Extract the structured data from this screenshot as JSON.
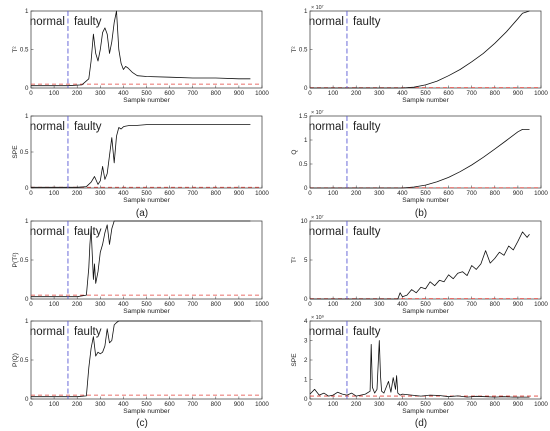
{
  "figure": {
    "annotations": {
      "normal": "normal",
      "faulty": "faulty"
    },
    "xlabel": "Sample number"
  },
  "chart_data": [
    {
      "id": "top-left",
      "type": "line",
      "ylabel": "T²",
      "xlabel": "Sample number",
      "xlim": [
        0,
        1000
      ],
      "ylim": [
        0,
        1
      ],
      "xticks": [
        0,
        100,
        200,
        300,
        400,
        500,
        600,
        700,
        800,
        900,
        1000
      ],
      "yticks": [
        0,
        0.5,
        1
      ],
      "ytick_labels": [
        "0",
        "0.5",
        "1"
      ],
      "multiplier": "",
      "fault_onset": 160,
      "threshold": 0.05,
      "series": [
        {
          "x": [
            0,
            100,
            160,
            220,
            250,
            260,
            270,
            280,
            290,
            300,
            310,
            320,
            330,
            340,
            350,
            360,
            370,
            380,
            390,
            400,
            410,
            420,
            440,
            460,
            500,
            600,
            700,
            800,
            900,
            950
          ],
          "y": [
            0.03,
            0.03,
            0.03,
            0.04,
            0.12,
            0.35,
            0.7,
            0.45,
            0.35,
            0.5,
            0.72,
            0.78,
            0.7,
            0.45,
            0.6,
            0.85,
            1.0,
            0.5,
            0.32,
            0.24,
            0.28,
            0.26,
            0.2,
            0.16,
            0.15,
            0.14,
            0.13,
            0.13,
            0.12,
            0.12
          ]
        }
      ]
    },
    {
      "id": "middle-left",
      "type": "line",
      "ylabel": "SPE",
      "xlabel": "Sample number",
      "xlim": [
        0,
        1000
      ],
      "ylim": [
        0,
        1
      ],
      "xticks": [
        0,
        100,
        200,
        300,
        400,
        500,
        600,
        700,
        800,
        900,
        1000
      ],
      "yticks": [
        0,
        0.5,
        1
      ],
      "ytick_labels": [
        "0",
        "0.5",
        "1"
      ],
      "multiplier": "",
      "fault_onset": 160,
      "threshold": 0.01,
      "series": [
        {
          "x": [
            0,
            100,
            200,
            240,
            260,
            275,
            290,
            300,
            310,
            320,
            330,
            340,
            350,
            360,
            370,
            380,
            390,
            400,
            410,
            430,
            460,
            500,
            600,
            700,
            800,
            900,
            950
          ],
          "y": [
            0.01,
            0.01,
            0.01,
            0.02,
            0.08,
            0.16,
            0.05,
            0.1,
            0.3,
            0.12,
            0.2,
            0.45,
            0.7,
            0.35,
            0.72,
            0.84,
            0.82,
            0.85,
            0.86,
            0.87,
            0.87,
            0.88,
            0.88,
            0.88,
            0.88,
            0.88,
            0.88
          ]
        }
      ]
    },
    {
      "id": "bottom-left-upper",
      "type": "line",
      "ylabel": "P(T²)",
      "xlabel": "Sample number",
      "xlim": [
        0,
        1000
      ],
      "ylim": [
        0,
        1
      ],
      "xticks": [
        0,
        100,
        200,
        300,
        400,
        500,
        600,
        700,
        800,
        900,
        1000
      ],
      "yticks": [
        0,
        0.5,
        1
      ],
      "ytick_labels": [
        "0",
        "0.5",
        "1"
      ],
      "multiplier": "",
      "fault_onset": 160,
      "threshold": 0.05,
      "series": [
        {
          "x": [
            0,
            100,
            200,
            240,
            250,
            255,
            260,
            270,
            275,
            280,
            290,
            300,
            310,
            320,
            330,
            340,
            350,
            360,
            370,
            380,
            400,
            500,
            600,
            700,
            800,
            900,
            950
          ],
          "y": [
            0.03,
            0.03,
            0.03,
            0.05,
            0.4,
            0.7,
            0.9,
            0.25,
            0.45,
            0.2,
            0.35,
            0.6,
            0.7,
            0.85,
            0.95,
            0.7,
            0.9,
            1.0,
            1.0,
            1.0,
            1.0,
            1.0,
            1.0,
            1.0,
            1.0,
            1.0,
            1.0
          ]
        }
      ]
    },
    {
      "id": "bottom-left-lower",
      "type": "line",
      "ylabel": "P(Q)",
      "xlabel": "Sample number",
      "xlim": [
        0,
        1000
      ],
      "ylim": [
        0,
        1
      ],
      "xticks": [
        0,
        100,
        200,
        300,
        400,
        500,
        600,
        700,
        800,
        900,
        1000
      ],
      "yticks": [
        0,
        0.5,
        1
      ],
      "ytick_labels": [
        "0",
        "0.5",
        "1"
      ],
      "multiplier": "",
      "fault_onset": 160,
      "threshold": 0.05,
      "series": [
        {
          "x": [
            0,
            100,
            200,
            240,
            250,
            260,
            270,
            280,
            290,
            300,
            310,
            320,
            330,
            340,
            350,
            360,
            370,
            380,
            390,
            400,
            500,
            600,
            700,
            800,
            900,
            950
          ],
          "y": [
            0.03,
            0.03,
            0.03,
            0.04,
            0.4,
            0.65,
            0.8,
            0.55,
            0.6,
            0.58,
            0.6,
            0.68,
            0.9,
            0.72,
            0.75,
            0.95,
            0.98,
            1.0,
            1.0,
            1.0,
            1.0,
            1.0,
            1.0,
            1.0,
            1.0,
            1.0
          ]
        }
      ]
    },
    {
      "id": "top-right",
      "type": "line",
      "ylabel": "T²",
      "xlabel": "Sample number",
      "xlim": [
        0,
        1000
      ],
      "ylim": [
        0,
        1
      ],
      "xticks": [
        0,
        100,
        200,
        300,
        400,
        500,
        600,
        700,
        800,
        900,
        1000
      ],
      "yticks": [
        0,
        0.5,
        1
      ],
      "ytick_labels": [
        "0",
        "0.5",
        "1"
      ],
      "multiplier": "× 10⁷",
      "fault_onset": 160,
      "threshold": 0.005,
      "series": [
        {
          "x": [
            0,
            100,
            200,
            300,
            400,
            450,
            500,
            550,
            600,
            650,
            700,
            750,
            800,
            850,
            900,
            920,
            950
          ],
          "y": [
            0,
            0,
            0,
            0,
            0,
            0.01,
            0.04,
            0.09,
            0.16,
            0.24,
            0.34,
            0.45,
            0.58,
            0.73,
            0.9,
            0.97,
            1.0
          ]
        }
      ]
    },
    {
      "id": "middle-right",
      "type": "line",
      "ylabel": "Q",
      "xlabel": "Sample number",
      "xlim": [
        0,
        1000
      ],
      "ylim": [
        0,
        1.5
      ],
      "xticks": [
        0,
        100,
        200,
        300,
        400,
        500,
        600,
        700,
        800,
        900,
        1000
      ],
      "yticks": [
        0,
        0.5,
        1,
        1.5
      ],
      "ytick_labels": [
        "0",
        "0.5",
        "1",
        "1.5"
      ],
      "multiplier": "× 10⁷",
      "fault_onset": 160,
      "threshold": 0.005,
      "series": [
        {
          "x": [
            0,
            100,
            200,
            300,
            400,
            450,
            500,
            550,
            600,
            650,
            700,
            750,
            800,
            850,
            900,
            920,
            950
          ],
          "y": [
            0,
            0,
            0,
            0,
            0,
            0.02,
            0.06,
            0.13,
            0.22,
            0.34,
            0.48,
            0.64,
            0.81,
            0.99,
            1.17,
            1.22,
            1.22
          ]
        }
      ]
    },
    {
      "id": "bottom-right-upper",
      "type": "line",
      "ylabel": "T²",
      "xlabel": "Sample number",
      "xlim": [
        0,
        1000
      ],
      "ylim": [
        0,
        10
      ],
      "xticks": [
        0,
        100,
        200,
        300,
        400,
        500,
        600,
        700,
        800,
        900,
        1000
      ],
      "yticks": [
        0,
        5,
        10
      ],
      "ytick_labels": [
        "0",
        "5",
        "10"
      ],
      "multiplier": "× 10⁷",
      "fault_onset": 160,
      "threshold": 0.05,
      "series": [
        {
          "x": [
            0,
            100,
            200,
            300,
            380,
            390,
            400,
            420,
            440,
            460,
            480,
            500,
            520,
            540,
            560,
            580,
            600,
            620,
            640,
            660,
            680,
            700,
            720,
            740,
            760,
            780,
            800,
            820,
            840,
            860,
            880,
            900,
            920,
            940,
            950
          ],
          "y": [
            0,
            0,
            0,
            0,
            0,
            0.8,
            0.3,
            0.5,
            1.2,
            0.8,
            1.5,
            1.3,
            2.2,
            1.7,
            2.4,
            2.2,
            3.1,
            2.6,
            3.3,
            3.5,
            3.0,
            4.3,
            3.8,
            4.5,
            6.2,
            4.6,
            5.2,
            6.0,
            5.6,
            6.8,
            6.3,
            7.4,
            8.6,
            7.9,
            8.3
          ]
        }
      ]
    },
    {
      "id": "bottom-right-lower",
      "type": "line",
      "ylabel": "SPE",
      "xlabel": "Sample number",
      "xlim": [
        0,
        1000
      ],
      "ylim": [
        0,
        4
      ],
      "xticks": [
        0,
        100,
        200,
        300,
        400,
        500,
        600,
        700,
        800,
        900,
        1000
      ],
      "yticks": [
        0,
        1,
        2,
        3,
        4
      ],
      "ytick_labels": [
        "0",
        "1",
        "2",
        "3",
        "4"
      ],
      "multiplier": "× 10⁹",
      "fault_onset": 160,
      "threshold": 0.15,
      "series": [
        {
          "x": [
            0,
            20,
            40,
            60,
            80,
            100,
            120,
            140,
            160,
            180,
            200,
            220,
            240,
            260,
            265,
            270,
            280,
            290,
            300,
            305,
            310,
            320,
            340,
            350,
            360,
            370,
            375,
            380,
            390,
            400,
            440,
            480,
            520,
            560,
            600,
            640,
            680,
            720,
            760,
            800,
            840,
            880,
            920,
            950
          ],
          "y": [
            0.25,
            0.5,
            0.2,
            0.3,
            0.15,
            0.2,
            0.35,
            0.25,
            0.2,
            0.3,
            0.15,
            0.2,
            0.25,
            0.4,
            2.8,
            0.6,
            0.3,
            0.5,
            3.0,
            1.2,
            0.4,
            0.3,
            0.9,
            0.35,
            1.1,
            0.5,
            1.2,
            0.3,
            0.2,
            0.25,
            0.2,
            0.15,
            0.2,
            0.18,
            0.12,
            0.16,
            0.1,
            0.14,
            0.12,
            0.1,
            0.12,
            0.1,
            0.1,
            0.1
          ]
        }
      ]
    }
  ],
  "captions": [
    "(a)",
    "(b)",
    "(c)",
    "(d)"
  ]
}
